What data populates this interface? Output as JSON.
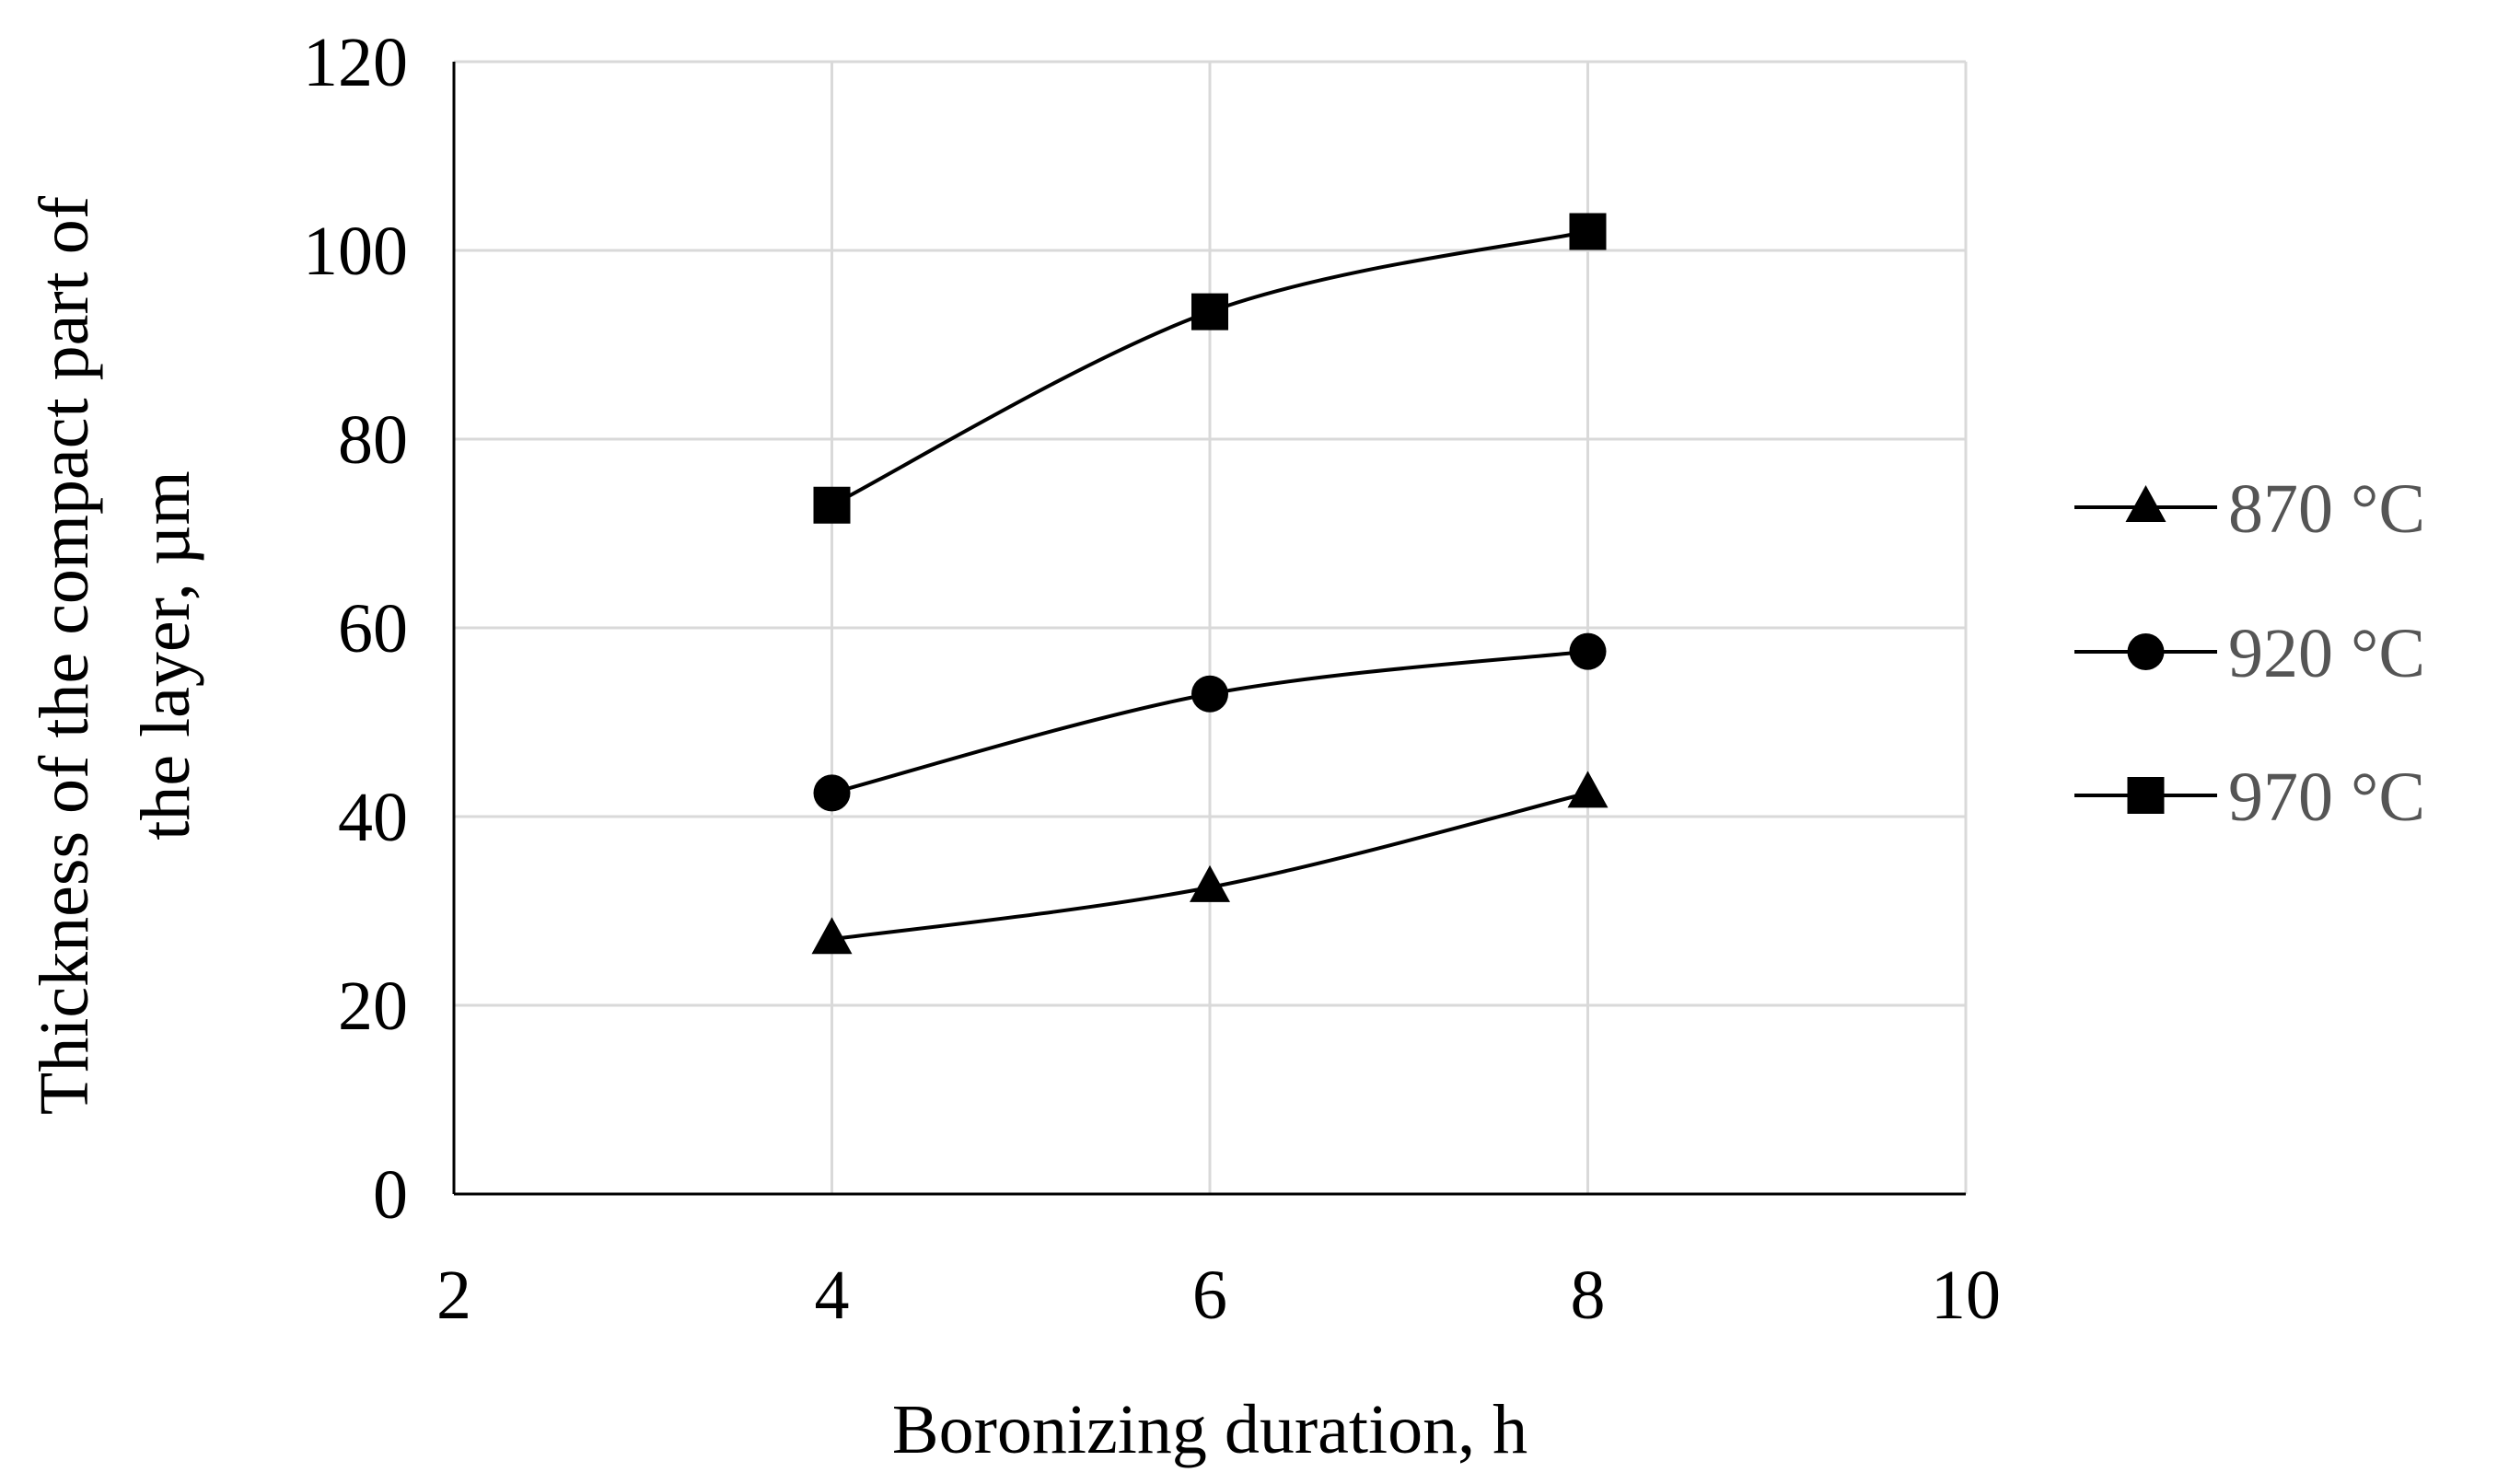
{
  "chart_data": {
    "type": "line",
    "title": "",
    "xlabel": "Boronizing duration, h",
    "ylabel_lines": [
      "Thickness of the compact part of",
      "the layer,  µm"
    ],
    "xlim": [
      2,
      10
    ],
    "ylim": [
      0,
      120
    ],
    "x_ticks": [
      "2",
      "4",
      "6",
      "8",
      "10"
    ],
    "y_ticks": [
      "0",
      "20",
      "40",
      "60",
      "80",
      "100",
      "120"
    ],
    "grid": true,
    "legend_position": "right",
    "line_color": "#000000",
    "grid_color": "#d9d9d9",
    "series": [
      {
        "name": "870 °C",
        "marker": "triangle",
        "x": [
          4,
          6,
          8
        ],
        "y": [
          27,
          32.5,
          42.5
        ]
      },
      {
        "name": "920 °C",
        "marker": "circle",
        "x": [
          4,
          6,
          8
        ],
        "y": [
          42.5,
          53,
          57.5
        ]
      },
      {
        "name": "970 °C",
        "marker": "square",
        "x": [
          4,
          6,
          8
        ],
        "y": [
          73,
          93.5,
          102
        ]
      }
    ]
  }
}
